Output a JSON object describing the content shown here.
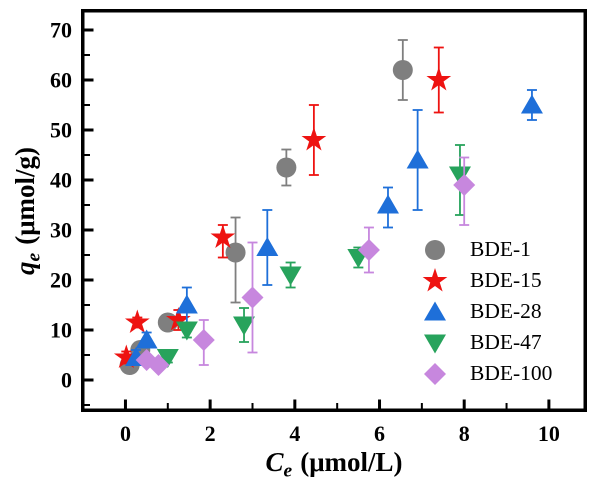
{
  "figure": {
    "background": "#ffffff",
    "frame_color": "#000000"
  },
  "axis_labels": {
    "x": {
      "symbol": "C",
      "sub": "e",
      "unit": "(μmol/L)"
    },
    "y": {
      "symbol": "q",
      "sub": "e",
      "unit": "(μmol/g)"
    }
  },
  "chart_data": {
    "type": "scatter",
    "title": "",
    "xlabel": "Ce (μmol/L)",
    "ylabel": "qe (μmol/g)",
    "xlim": [
      -1.05,
      10.9
    ],
    "ylim": [
      -6.4,
      74.2
    ],
    "x_ticks": [
      0,
      2,
      4,
      6,
      8,
      10
    ],
    "y_ticks": [
      0,
      10,
      20,
      30,
      40,
      50,
      60,
      70
    ],
    "x_minor_step": 1,
    "y_minor_step": 5,
    "grid": false,
    "error_bars": true,
    "legend": {
      "position": "lower-right-inside",
      "entries": [
        "BDE-1",
        "BDE-15",
        "BDE-28",
        "BDE-47",
        "BDE-100"
      ]
    },
    "point_format": [
      "x",
      "y",
      "err_up",
      "err_down"
    ],
    "series": [
      {
        "name": "BDE-1",
        "marker": "circle",
        "color": "#7f7f7f",
        "points": [
          [
            0.1,
            3.0,
            1.0,
            1.0
          ],
          [
            0.35,
            6.0,
            1.2,
            1.2
          ],
          [
            1.0,
            11.5,
            1.5,
            1.5
          ],
          [
            2.6,
            25.5,
            7.0,
            10.0
          ],
          [
            3.8,
            42.5,
            3.6,
            3.6
          ],
          [
            6.55,
            62.0,
            6.0,
            6.0
          ]
        ]
      },
      {
        "name": "BDE-15",
        "marker": "star",
        "color": "#ee1311",
        "points": [
          [
            0.02,
            4.5,
            1.2,
            1.2
          ],
          [
            0.28,
            11.5,
            1.0,
            1.0
          ],
          [
            1.25,
            12.0,
            2.0,
            2.0
          ],
          [
            2.3,
            28.5,
            2.5,
            4.0
          ],
          [
            4.45,
            48.0,
            7.0,
            7.0
          ],
          [
            7.4,
            60.0,
            6.5,
            6.5
          ]
        ]
      },
      {
        "name": "BDE-28",
        "marker": "triangle-up",
        "color": "#1e6fd9",
        "points": [
          [
            0.25,
            4.5,
            1.5,
            1.5
          ],
          [
            0.5,
            8.0,
            1.5,
            1.5
          ],
          [
            1.45,
            15.0,
            3.5,
            3.5
          ],
          [
            3.35,
            26.5,
            7.5,
            7.5
          ],
          [
            6.2,
            35.0,
            3.5,
            4.5
          ],
          [
            6.9,
            44.0,
            10.0,
            10.0
          ],
          [
            9.6,
            55.0,
            3.0,
            3.0
          ]
        ]
      },
      {
        "name": "BDE-47",
        "marker": "triangle-down",
        "color": "#27a35c",
        "points": [
          [
            1.0,
            4.5,
            1.0,
            1.0
          ],
          [
            1.45,
            10.0,
            1.5,
            1.5
          ],
          [
            2.8,
            11.0,
            3.4,
            3.4
          ],
          [
            3.9,
            21.0,
            2.5,
            2.5
          ],
          [
            5.5,
            24.5,
            2.0,
            2.0
          ],
          [
            7.9,
            41.0,
            6.0,
            8.0
          ]
        ]
      },
      {
        "name": "BDE-100",
        "marker": "diamond",
        "color": "#c787de",
        "points": [
          [
            0.5,
            4.0,
            1.0,
            1.0
          ],
          [
            0.78,
            3.0,
            1.0,
            1.0
          ],
          [
            1.85,
            8.0,
            4.0,
            5.0
          ],
          [
            3.0,
            16.5,
            11.0,
            11.0
          ],
          [
            5.75,
            26.0,
            4.5,
            4.5
          ],
          [
            8.0,
            39.0,
            5.5,
            8.0
          ]
        ]
      }
    ]
  }
}
